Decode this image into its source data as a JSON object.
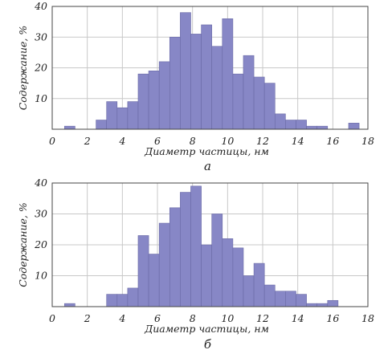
{
  "chart_data": [
    {
      "type": "bar",
      "caption": "а",
      "xlabel": "Диаметр частицы, нм",
      "ylabel": "Содержание, %",
      "xlim": [
        0,
        18
      ],
      "ylim": [
        0,
        40
      ],
      "xticks": [
        0,
        2,
        4,
        6,
        8,
        10,
        12,
        14,
        16,
        18
      ],
      "yticks": [
        10,
        20,
        30,
        40
      ],
      "bin_width": 0.6,
      "color": "#8787c6",
      "x": [
        1.0,
        1.6,
        2.2,
        2.8,
        3.4,
        4.0,
        4.6,
        5.2,
        5.8,
        6.4,
        7.0,
        7.6,
        8.2,
        8.8,
        9.4,
        10.0,
        10.6,
        11.2,
        11.8,
        12.4,
        13.0,
        13.6,
        14.2,
        14.8,
        15.4,
        16.0,
        16.6,
        17.2
      ],
      "values": [
        1,
        0,
        0,
        3,
        9,
        7,
        9,
        18,
        19,
        22,
        30,
        38,
        31,
        34,
        27,
        36,
        18,
        24,
        17,
        15,
        5,
        3,
        3,
        1,
        1,
        0,
        0,
        2
      ],
      "grid": true
    },
    {
      "type": "bar",
      "caption": "б",
      "xlabel": "Диаметр частицы, нм",
      "ylabel": "Содержание, %",
      "xlim": [
        0,
        18
      ],
      "ylim": [
        0,
        40
      ],
      "xticks": [
        0,
        2,
        4,
        6,
        8,
        10,
        12,
        14,
        16,
        18
      ],
      "yticks": [
        10,
        20,
        30,
        40
      ],
      "bin_width": 0.6,
      "color": "#8787c6",
      "x": [
        1.0,
        1.6,
        2.2,
        2.8,
        3.4,
        4.0,
        4.6,
        5.2,
        5.8,
        6.4,
        7.0,
        7.6,
        8.2,
        8.8,
        9.4,
        10.0,
        10.6,
        11.2,
        11.8,
        12.4,
        13.0,
        13.6,
        14.2,
        14.8,
        15.4,
        16.0,
        16.6,
        17.2
      ],
      "values": [
        1,
        0,
        0,
        0,
        4,
        4,
        6,
        23,
        17,
        27,
        32,
        37,
        39,
        20,
        30,
        22,
        19,
        10,
        14,
        7,
        5,
        5,
        4,
        1,
        1,
        2,
        0,
        0
      ],
      "grid": true
    }
  ]
}
